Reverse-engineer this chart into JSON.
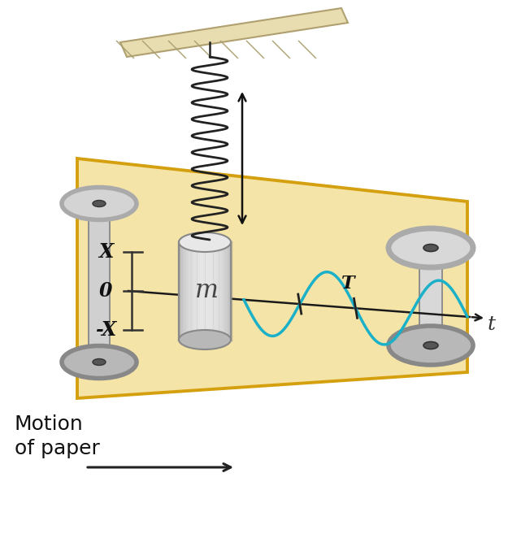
{
  "bg_color": "#ffffff",
  "paper_color": "#f5e4a8",
  "paper_edge_color": "#d4a010",
  "spring_color": "#222222",
  "wave_color": "#1ab0c8",
  "ceiling_color": "#e8ddb0",
  "ceiling_edge_color": "#b0a070",
  "roll_top_color": "#c8c8c8",
  "roll_mid_color": "#d8d8d8",
  "roll_bot_color": "#a8a8a8",
  "roll_edge_color": "#888888",
  "mass_top_color": "#e0e0e0",
  "mass_body_color": "#c8c8c8",
  "mass_bot_color": "#b0b0b0",
  "mass_edge_color": "#888888",
  "motion_text": "Motion\nof paper",
  "t_label": "t",
  "mass_label": "m",
  "T_label": "T",
  "X_label": "X",
  "zero_label": "0",
  "neg_X_label": "-X",
  "fig_w": 6.25,
  "fig_h": 6.78,
  "dpi": 100
}
